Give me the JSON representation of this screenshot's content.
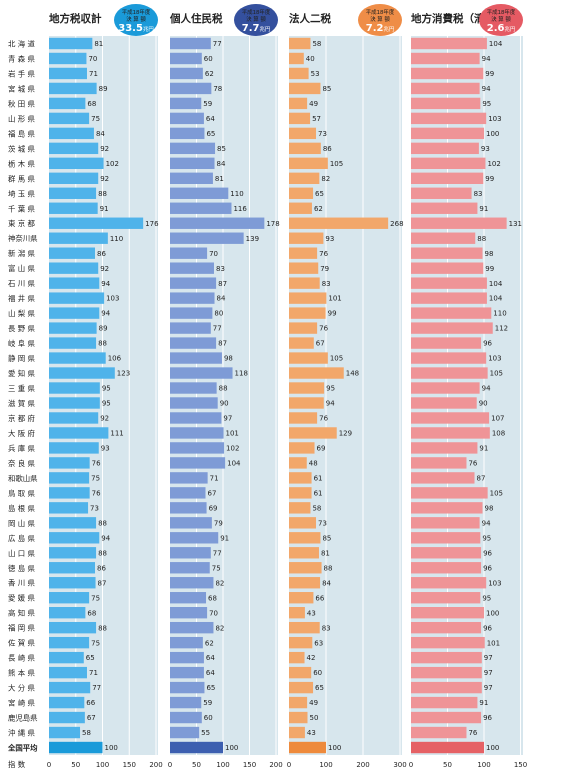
{
  "chart_data": {
    "type": "bar",
    "categories": [
      "北海道",
      "青森県",
      "岩手県",
      "宮城県",
      "秋田県",
      "山形県",
      "福島県",
      "茨城県",
      "栃木県",
      "群馬県",
      "埼玉県",
      "千葉県",
      "東京都",
      "神奈川県",
      "新潟県",
      "富山県",
      "石川県",
      "福井県",
      "山梨県",
      "長野県",
      "岐阜県",
      "静岡県",
      "愛知県",
      "三重県",
      "滋賀県",
      "京都府",
      "大阪府",
      "兵庫県",
      "奈良県",
      "和歌山県",
      "鳥取県",
      "島根県",
      "岡山県",
      "広島県",
      "山口県",
      "徳島県",
      "香川県",
      "愛媛県",
      "高知県",
      "福岡県",
      "佐賀県",
      "長崎県",
      "熊本県",
      "大分県",
      "宮崎県",
      "鹿児島県",
      "沖縄県",
      "全国平均"
    ],
    "category_labels": [
      "北 海 道",
      "青 森 県",
      "岩 手 県",
      "宮 城 県",
      "秋 田 県",
      "山 形 県",
      "福 島 県",
      "茨 城 県",
      "栃 木 県",
      "群 馬 県",
      "埼 玉 県",
      "千 葉 県",
      "東 京 都",
      "神奈川県",
      "新 潟 県",
      "富 山 県",
      "石 川 県",
      "福 井 県",
      "山 梨 県",
      "長 野 県",
      "岐 阜 県",
      "静 岡 県",
      "愛 知 県",
      "三 重 県",
      "滋 賀 県",
      "京 都 府",
      "大 阪 府",
      "兵 庫 県",
      "奈 良 県",
      "和歌山県",
      "鳥 取 県",
      "島 根 県",
      "岡 山 県",
      "広 島 県",
      "山 口 県",
      "徳 島 県",
      "香 川 県",
      "愛 媛 県",
      "高 知 県",
      "福 岡 県",
      "佐 賀 県",
      "長 崎 県",
      "熊 本 県",
      "大 分 県",
      "宮 崎 県",
      "鹿児島県",
      "沖 縄 県",
      "全国平均"
    ],
    "index_label": "指 数",
    "panels": [
      {
        "title": "地方税収計",
        "badge": {
          "line1": "平成18年度",
          "line2": "決 算 額",
          "value": "33.5",
          "unit": "兆円"
        },
        "xlim": [
          0,
          200
        ],
        "ticks": [
          0,
          50,
          100,
          150,
          200
        ],
        "bar_color": "#4fb3ea",
        "avg_color": "#1a9ad9",
        "badge_color": "#1a9ad9",
        "values": [
          81,
          70,
          71,
          89,
          68,
          75,
          84,
          92,
          102,
          92,
          88,
          91,
          176,
          110,
          86,
          92,
          94,
          103,
          94,
          89,
          88,
          106,
          123,
          95,
          95,
          92,
          111,
          93,
          76,
          75,
          76,
          73,
          88,
          94,
          88,
          86,
          87,
          75,
          68,
          88,
          75,
          65,
          71,
          77,
          66,
          67,
          58,
          100
        ]
      },
      {
        "title": "個人住民税",
        "badge": {
          "line1": "平成18年度",
          "line2": "決 算 額",
          "value": "7.7",
          "unit": "兆円"
        },
        "xlim": [
          0,
          200
        ],
        "ticks": [
          0,
          50,
          100,
          150,
          200
        ],
        "bar_color": "#7e9bd6",
        "avg_color": "#3c5fb0",
        "badge_color": "#34509e",
        "values": [
          77,
          60,
          62,
          78,
          59,
          64,
          65,
          85,
          84,
          81,
          110,
          116,
          178,
          139,
          70,
          83,
          87,
          84,
          80,
          77,
          87,
          98,
          118,
          88,
          90,
          97,
          101,
          102,
          104,
          71,
          67,
          69,
          79,
          91,
          77,
          75,
          82,
          68,
          70,
          82,
          62,
          64,
          64,
          65,
          59,
          60,
          55,
          100
        ]
      },
      {
        "title": "法人二税",
        "badge": {
          "line1": "平成18年度",
          "line2": "決 算 額",
          "value": "7.2",
          "unit": "兆円"
        },
        "xlim": [
          0,
          300
        ],
        "ticks": [
          0,
          100,
          200,
          300
        ],
        "bar_color": "#f2a76a",
        "avg_color": "#ee8a3c",
        "badge_color": "#ef8d47",
        "values": [
          58,
          40,
          53,
          85,
          49,
          57,
          73,
          86,
          105,
          82,
          65,
          62,
          268,
          93,
          76,
          79,
          83,
          101,
          99,
          76,
          67,
          105,
          148,
          95,
          94,
          76,
          129,
          69,
          48,
          61,
          61,
          58,
          73,
          85,
          81,
          88,
          84,
          66,
          43,
          83,
          63,
          42,
          60,
          65,
          49,
          50,
          43,
          100
        ]
      },
      {
        "title": "地方消費税（清算後）",
        "badge": {
          "line1": "平成18年度",
          "line2": "決 算 額",
          "value": "2.6",
          "unit": "兆円"
        },
        "xlim": [
          0,
          150
        ],
        "ticks": [
          0,
          50,
          100,
          150
        ],
        "bar_color": "#ef9497",
        "avg_color": "#e56165",
        "badge_color": "#e55a63",
        "values": [
          104,
          94,
          99,
          94,
          95,
          103,
          100,
          93,
          102,
          99,
          83,
          91,
          131,
          88,
          98,
          99,
          104,
          104,
          110,
          112,
          96,
          103,
          105,
          94,
          90,
          107,
          108,
          91,
          76,
          87,
          105,
          98,
          94,
          95,
          96,
          96,
          103,
          95,
          100,
          96,
          101,
          97,
          97,
          97,
          91,
          96,
          76,
          100
        ]
      }
    ]
  }
}
